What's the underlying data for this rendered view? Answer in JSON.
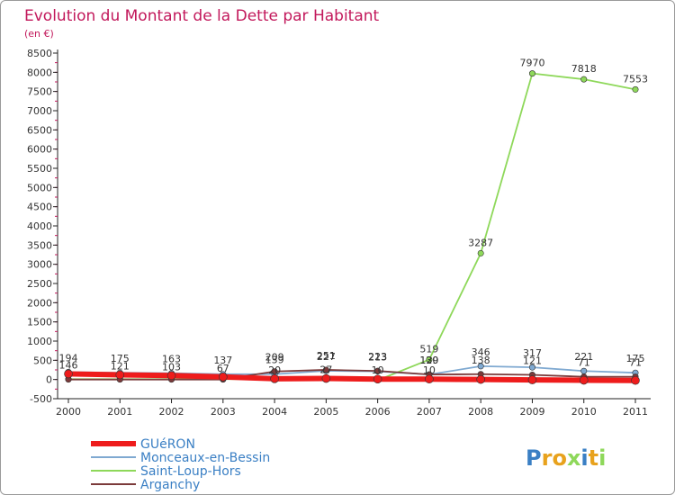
{
  "chart_data": {
    "type": "line",
    "title": "Evolution du Montant de la Dette par Habitant",
    "subtitle": "(en €)",
    "categories": [
      "2000",
      "2001",
      "2002",
      "2003",
      "2004",
      "2005",
      "2006",
      "2007",
      "2008",
      "2009",
      "2010",
      "2011"
    ],
    "ylim": [
      -500,
      8500
    ],
    "yticks": [
      -500,
      0,
      500,
      1000,
      1500,
      2000,
      2500,
      3000,
      3500,
      4000,
      4500,
      5000,
      5500,
      6000,
      6500,
      7000,
      7500,
      8000,
      8500
    ],
    "grid": false,
    "legend_position": "bottom-left",
    "series": [
      {
        "name": "GUéRON",
        "color": "#ee1c1c",
        "values": [
          146,
          121,
          103,
          67,
          20,
          27,
          10,
          10,
          0,
          -10,
          -20,
          -25
        ]
      },
      {
        "name": "Monceaux-en-Bessin",
        "color": "#7fa9d1",
        "values": [
          194,
          175,
          163,
          137,
          139,
          227,
          213,
          129,
          346,
          317,
          221,
          175
        ]
      },
      {
        "name": "Saint-Loup-Hors",
        "color": "#8ed85a",
        "values": [
          10,
          10,
          10,
          10,
          10,
          10,
          -20,
          519,
          3287,
          7970,
          7818,
          7553
        ]
      },
      {
        "name": "Arganchy",
        "color": "#7b3a3a",
        "values": [
          0,
          0,
          0,
          0,
          209,
          251,
          223,
          130,
          138,
          121,
          71,
          71
        ]
      }
    ],
    "labels": [
      [
        "146",
        "121",
        "103",
        "67",
        "20",
        "27",
        "10",
        "10",
        "",
        "",
        "",
        ""
      ],
      [
        "194",
        "175",
        "163",
        "137",
        "139",
        "227",
        "213",
        "129",
        "346",
        "317",
        "221",
        "175"
      ],
      [
        "",
        "",
        "",
        "",
        "",
        "",
        "",
        "519",
        "3287",
        "7970",
        "7818",
        "7553"
      ],
      [
        "",
        "",
        "",
        "",
        "209",
        "251",
        "223",
        "130",
        "138",
        "121",
        "71",
        "71"
      ]
    ]
  },
  "brand": {
    "letters": [
      "P",
      "r",
      "o",
      "x",
      "i",
      "t",
      "i"
    ],
    "colors": [
      "#3a7fc4",
      "#e8a21d",
      "#e8a21d",
      "#8ed85a",
      "#3a7fc4",
      "#e8a21d",
      "#8ed85a"
    ]
  }
}
